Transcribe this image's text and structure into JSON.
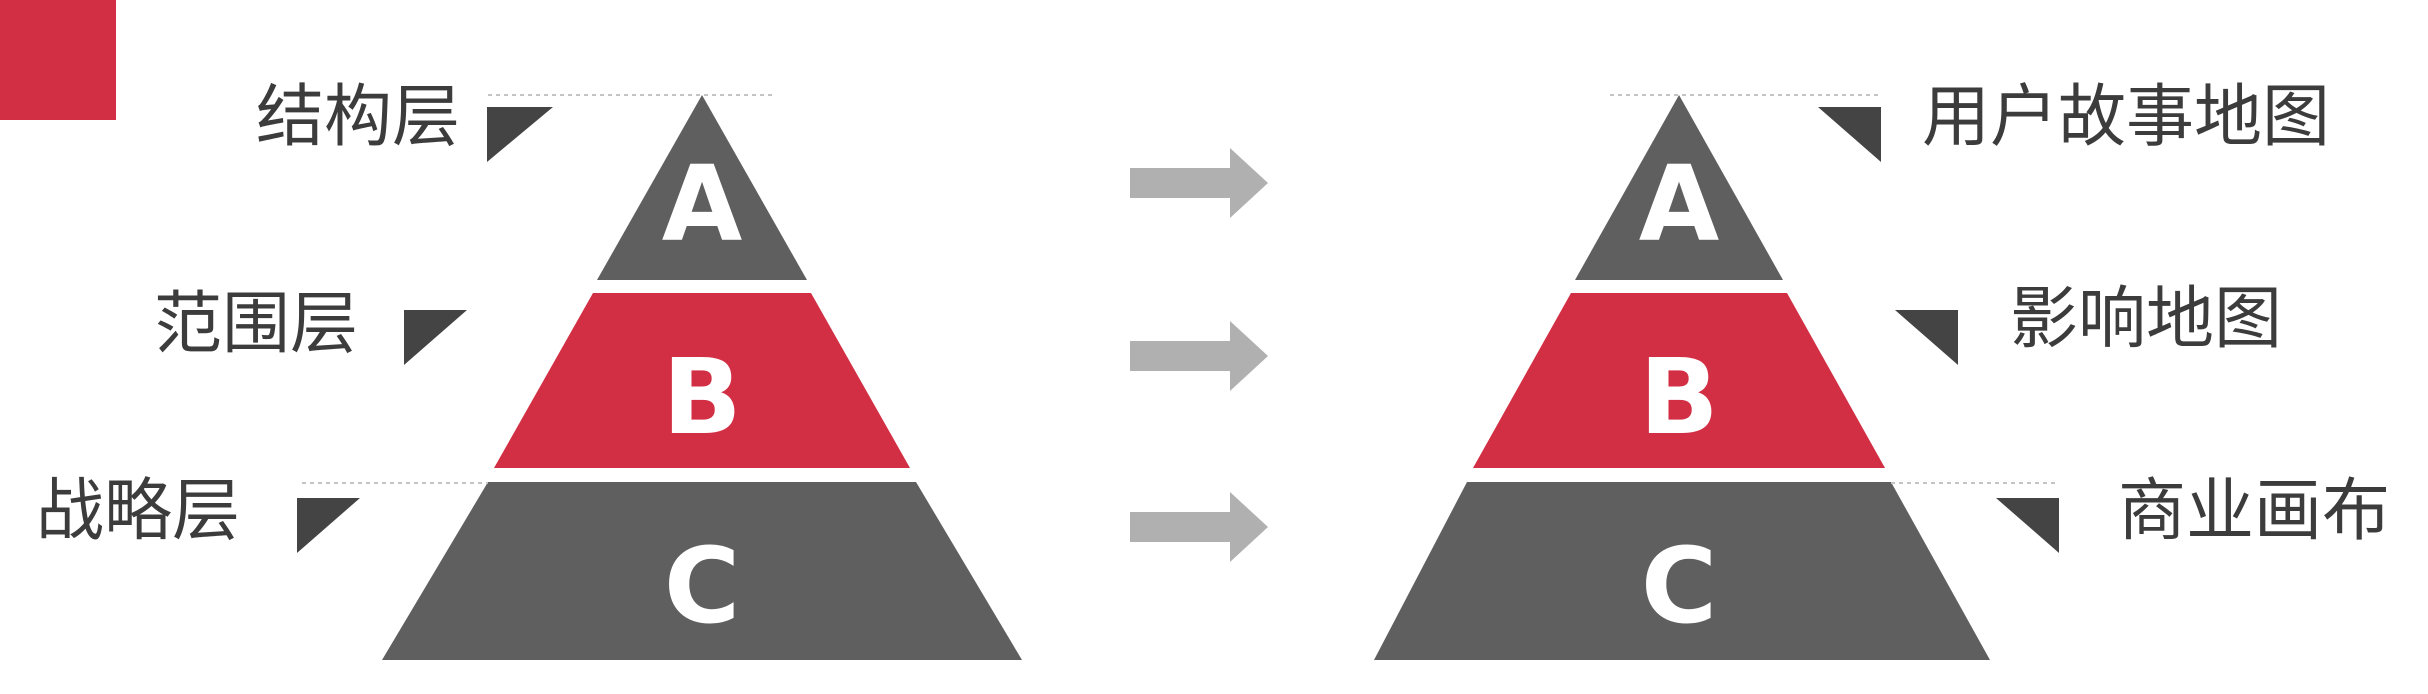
{
  "left_pyramid": {
    "tiers": [
      {
        "letter": "A",
        "label": "结构层",
        "color": "#5f5f5f"
      },
      {
        "letter": "B",
        "label": "范围层",
        "color": "#d22f44"
      },
      {
        "letter": "C",
        "label": "战略层",
        "color": "#5f5f5f"
      }
    ]
  },
  "right_pyramid": {
    "tiers": [
      {
        "letter": "A",
        "label": "用户故事地图",
        "color": "#5f5f5f"
      },
      {
        "letter": "B",
        "label": "影响地图",
        "color": "#d22f44"
      },
      {
        "letter": "C",
        "label": "商业画布",
        "color": "#5f5f5f"
      }
    ]
  },
  "colors": {
    "accent": "#d22f44",
    "dark": "#5f5f5f",
    "marker": "#444444",
    "arrow": "#b0b0b0",
    "text": "#3c3c3c"
  },
  "arrow_count": 3
}
